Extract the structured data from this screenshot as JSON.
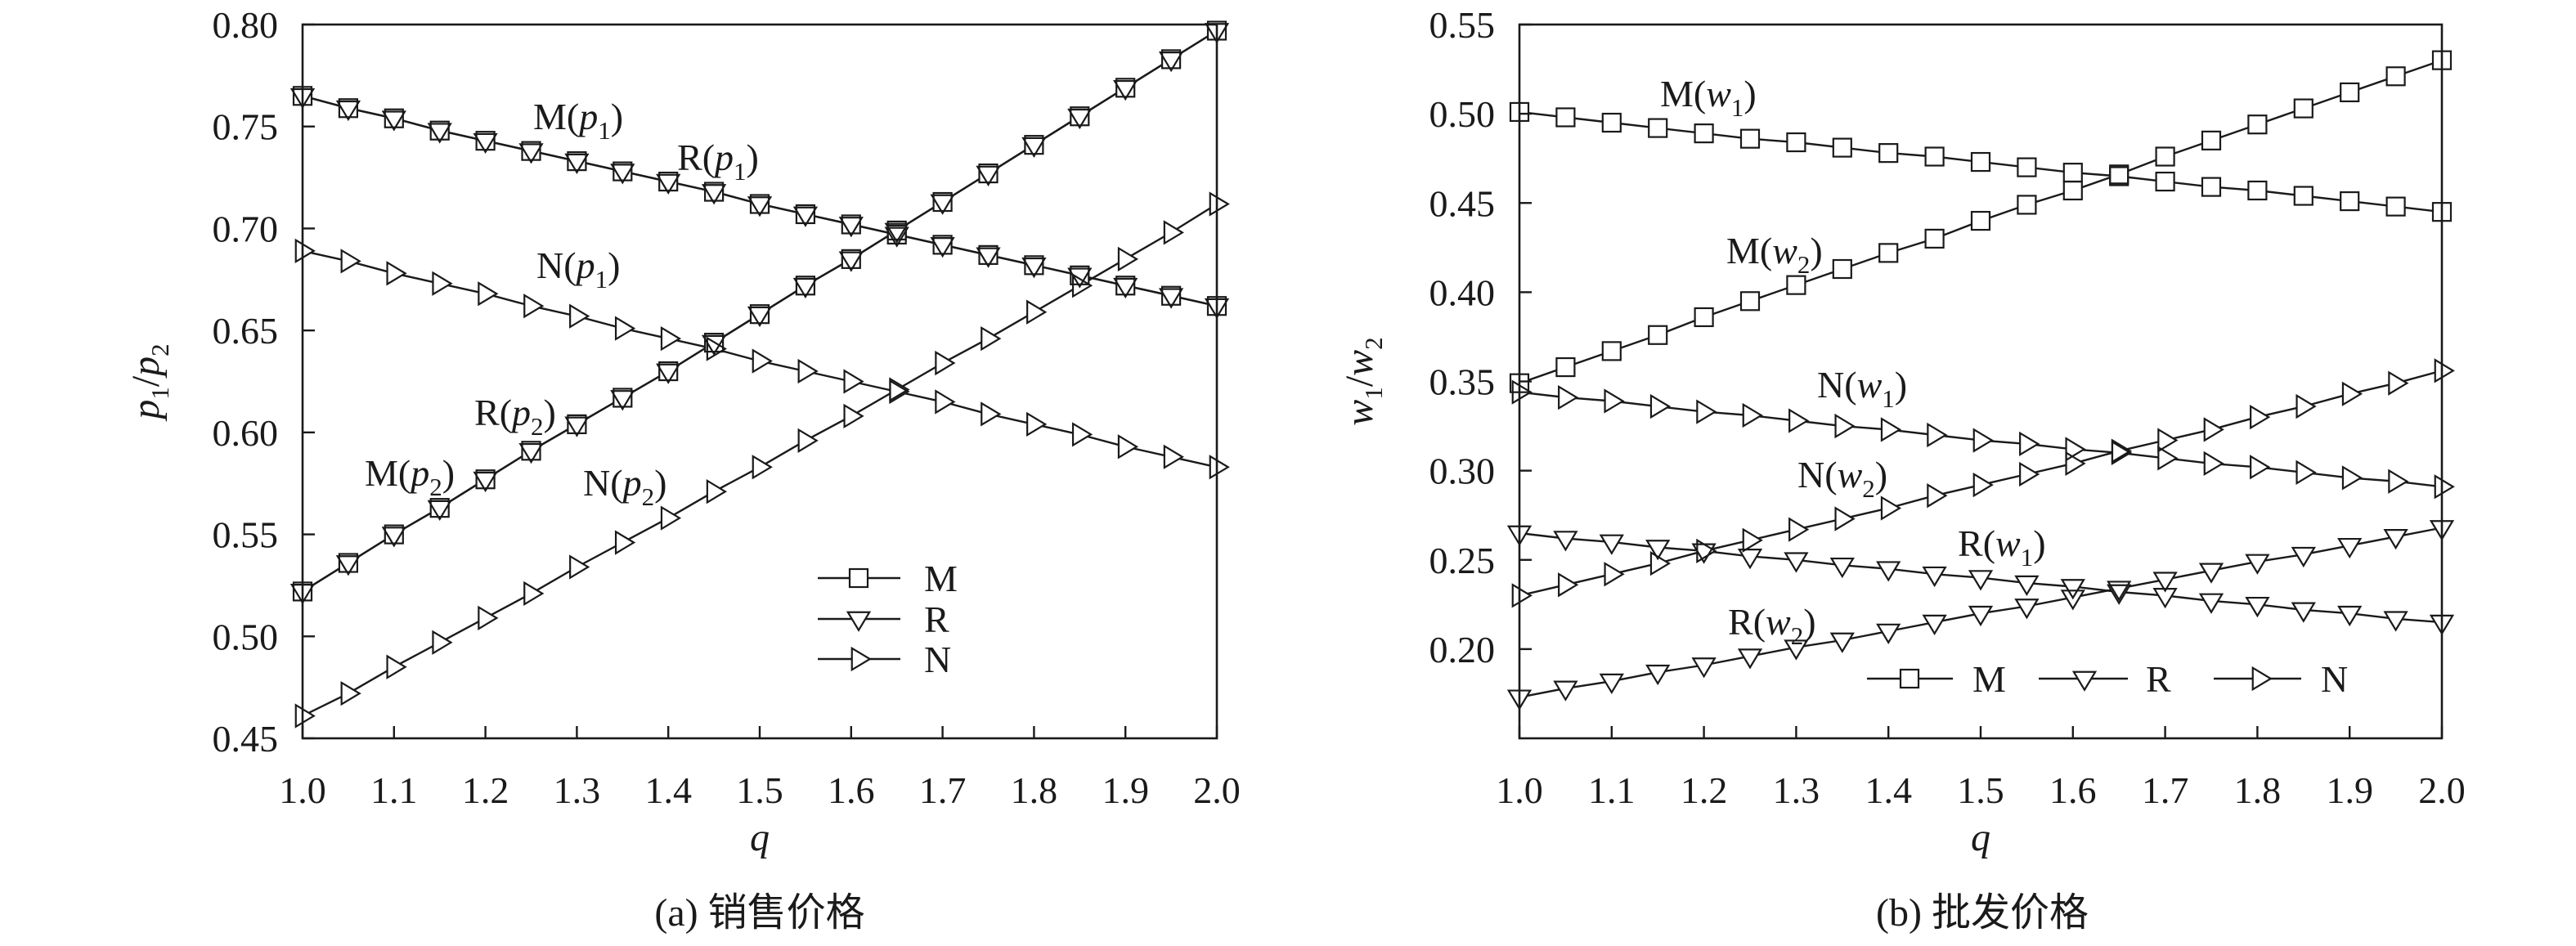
{
  "chart_data": [
    {
      "type": "line",
      "caption": "(a) 销售价格",
      "xlabel": "q",
      "ylabel": "p1/p2",
      "xlim": [
        1.0,
        2.0
      ],
      "ylim": [
        0.45,
        0.8
      ],
      "xticks": [
        "1.0",
        "1.1",
        "1.2",
        "1.3",
        "1.4",
        "1.5",
        "1.6",
        "1.7",
        "1.8",
        "1.9",
        "2.0"
      ],
      "yticks": [
        "0.45",
        "0.50",
        "0.55",
        "0.60",
        "0.65",
        "0.70",
        "0.75",
        "0.80"
      ],
      "grid": false,
      "x": [
        1.0,
        1.05,
        1.1,
        1.15,
        1.2,
        1.25,
        1.3,
        1.35,
        1.4,
        1.45,
        1.5,
        1.55,
        1.6,
        1.65,
        1.7,
        1.75,
        1.8,
        1.85,
        1.9,
        1.95,
        2.0
      ],
      "series": [
        {
          "name": "M(p1)",
          "marker": "square",
          "values": [
            0.765,
            0.759,
            0.754,
            0.748,
            0.743,
            0.738,
            0.733,
            0.728,
            0.723,
            0.718,
            0.712,
            0.707,
            0.702,
            0.697,
            0.692,
            0.687,
            0.682,
            0.677,
            0.672,
            0.667,
            0.662
          ]
        },
        {
          "name": "R(p1)",
          "marker": "triangle-down",
          "values": [
            0.765,
            0.759,
            0.754,
            0.748,
            0.743,
            0.738,
            0.733,
            0.728,
            0.723,
            0.718,
            0.712,
            0.707,
            0.702,
            0.697,
            0.692,
            0.687,
            0.682,
            0.677,
            0.672,
            0.667,
            0.662
          ]
        },
        {
          "name": "N(p1)",
          "marker": "triangle-right",
          "values": [
            0.689,
            0.684,
            0.678,
            0.673,
            0.668,
            0.662,
            0.657,
            0.651,
            0.646,
            0.641,
            0.635,
            0.63,
            0.625,
            0.62,
            0.615,
            0.609,
            0.604,
            0.599,
            0.593,
            0.588,
            0.583
          ]
        },
        {
          "name": "M(p2)",
          "marker": "square",
          "values": [
            0.522,
            0.536,
            0.55,
            0.563,
            0.577,
            0.591,
            0.604,
            0.617,
            0.63,
            0.644,
            0.658,
            0.672,
            0.685,
            0.699,
            0.713,
            0.727,
            0.741,
            0.755,
            0.769,
            0.783,
            0.797
          ]
        },
        {
          "name": "R(p2)",
          "marker": "triangle-down",
          "values": [
            0.522,
            0.536,
            0.55,
            0.563,
            0.577,
            0.591,
            0.604,
            0.617,
            0.63,
            0.644,
            0.658,
            0.672,
            0.685,
            0.699,
            0.713,
            0.727,
            0.741,
            0.755,
            0.769,
            0.783,
            0.797
          ]
        },
        {
          "name": "N(p2)",
          "marker": "triangle-right",
          "values": [
            0.461,
            0.472,
            0.485,
            0.497,
            0.509,
            0.521,
            0.534,
            0.546,
            0.558,
            0.571,
            0.583,
            0.596,
            0.608,
            0.621,
            0.634,
            0.646,
            0.659,
            0.672,
            0.685,
            0.698,
            0.712
          ]
        }
      ],
      "legend": {
        "position": "lower-right",
        "orientation": "vertical",
        "entries": [
          {
            "label": "M",
            "marker": "square"
          },
          {
            "label": "R",
            "marker": "triangle-down"
          },
          {
            "label": "N",
            "marker": "triangle-right"
          }
        ]
      }
    },
    {
      "type": "line",
      "caption": "(b) 批发价格",
      "xlabel": "q",
      "ylabel": "w1/w2",
      "xlim": [
        1.0,
        2.0
      ],
      "ylim": [
        0.15,
        0.55
      ],
      "xticks": [
        "1.0",
        "1.1",
        "1.2",
        "1.3",
        "1.4",
        "1.5",
        "1.6",
        "1.7",
        "1.8",
        "1.9",
        "2.0"
      ],
      "yticks": [
        "0.20",
        "0.25",
        "0.30",
        "0.35",
        "0.40",
        "0.45",
        "0.50",
        "0.55"
      ],
      "grid": false,
      "x": [
        1.0,
        1.05,
        1.1,
        1.15,
        1.2,
        1.25,
        1.3,
        1.35,
        1.4,
        1.45,
        1.5,
        1.55,
        1.6,
        1.65,
        1.7,
        1.75,
        1.8,
        1.85,
        1.9,
        1.95,
        2.0
      ],
      "series": [
        {
          "name": "M(w1)",
          "marker": "square",
          "values": [
            0.501,
            0.498,
            0.495,
            0.492,
            0.489,
            0.486,
            0.484,
            0.481,
            0.478,
            0.476,
            0.473,
            0.47,
            0.467,
            0.465,
            0.462,
            0.459,
            0.457,
            0.454,
            0.451,
            0.448,
            0.445
          ]
        },
        {
          "name": "R(w1)",
          "marker": "triangle-down",
          "values": [
            0.265,
            0.262,
            0.26,
            0.257,
            0.255,
            0.252,
            0.25,
            0.247,
            0.245,
            0.242,
            0.24,
            0.237,
            0.235,
            0.232,
            0.23,
            0.227,
            0.225,
            0.222,
            0.22,
            0.217,
            0.215
          ]
        },
        {
          "name": "N(w1)",
          "marker": "triangle-right",
          "values": [
            0.344,
            0.341,
            0.339,
            0.336,
            0.333,
            0.331,
            0.328,
            0.325,
            0.323,
            0.32,
            0.317,
            0.315,
            0.312,
            0.31,
            0.307,
            0.304,
            0.302,
            0.299,
            0.296,
            0.294,
            0.291
          ]
        },
        {
          "name": "M(w2)",
          "marker": "square",
          "values": [
            0.349,
            0.358,
            0.367,
            0.376,
            0.386,
            0.395,
            0.404,
            0.413,
            0.422,
            0.43,
            0.44,
            0.449,
            0.457,
            0.466,
            0.476,
            0.485,
            0.494,
            0.503,
            0.512,
            0.521,
            0.53
          ]
        },
        {
          "name": "R(w2)",
          "marker": "triangle-down",
          "values": [
            0.173,
            0.178,
            0.182,
            0.187,
            0.191,
            0.196,
            0.201,
            0.205,
            0.21,
            0.215,
            0.22,
            0.224,
            0.229,
            0.234,
            0.239,
            0.244,
            0.249,
            0.253,
            0.258,
            0.263,
            0.268
          ]
        },
        {
          "name": "N(w2)",
          "marker": "triangle-right",
          "values": [
            0.23,
            0.236,
            0.242,
            0.248,
            0.255,
            0.261,
            0.267,
            0.273,
            0.279,
            0.286,
            0.292,
            0.298,
            0.304,
            0.311,
            0.317,
            0.323,
            0.33,
            0.336,
            0.343,
            0.349,
            0.356
          ]
        }
      ],
      "legend": {
        "position": "bottom-right",
        "orientation": "horizontal",
        "entries": [
          {
            "label": "M",
            "marker": "square"
          },
          {
            "label": "R",
            "marker": "triangle-down"
          },
          {
            "label": "N",
            "marker": "triangle-right"
          }
        ]
      }
    }
  ]
}
